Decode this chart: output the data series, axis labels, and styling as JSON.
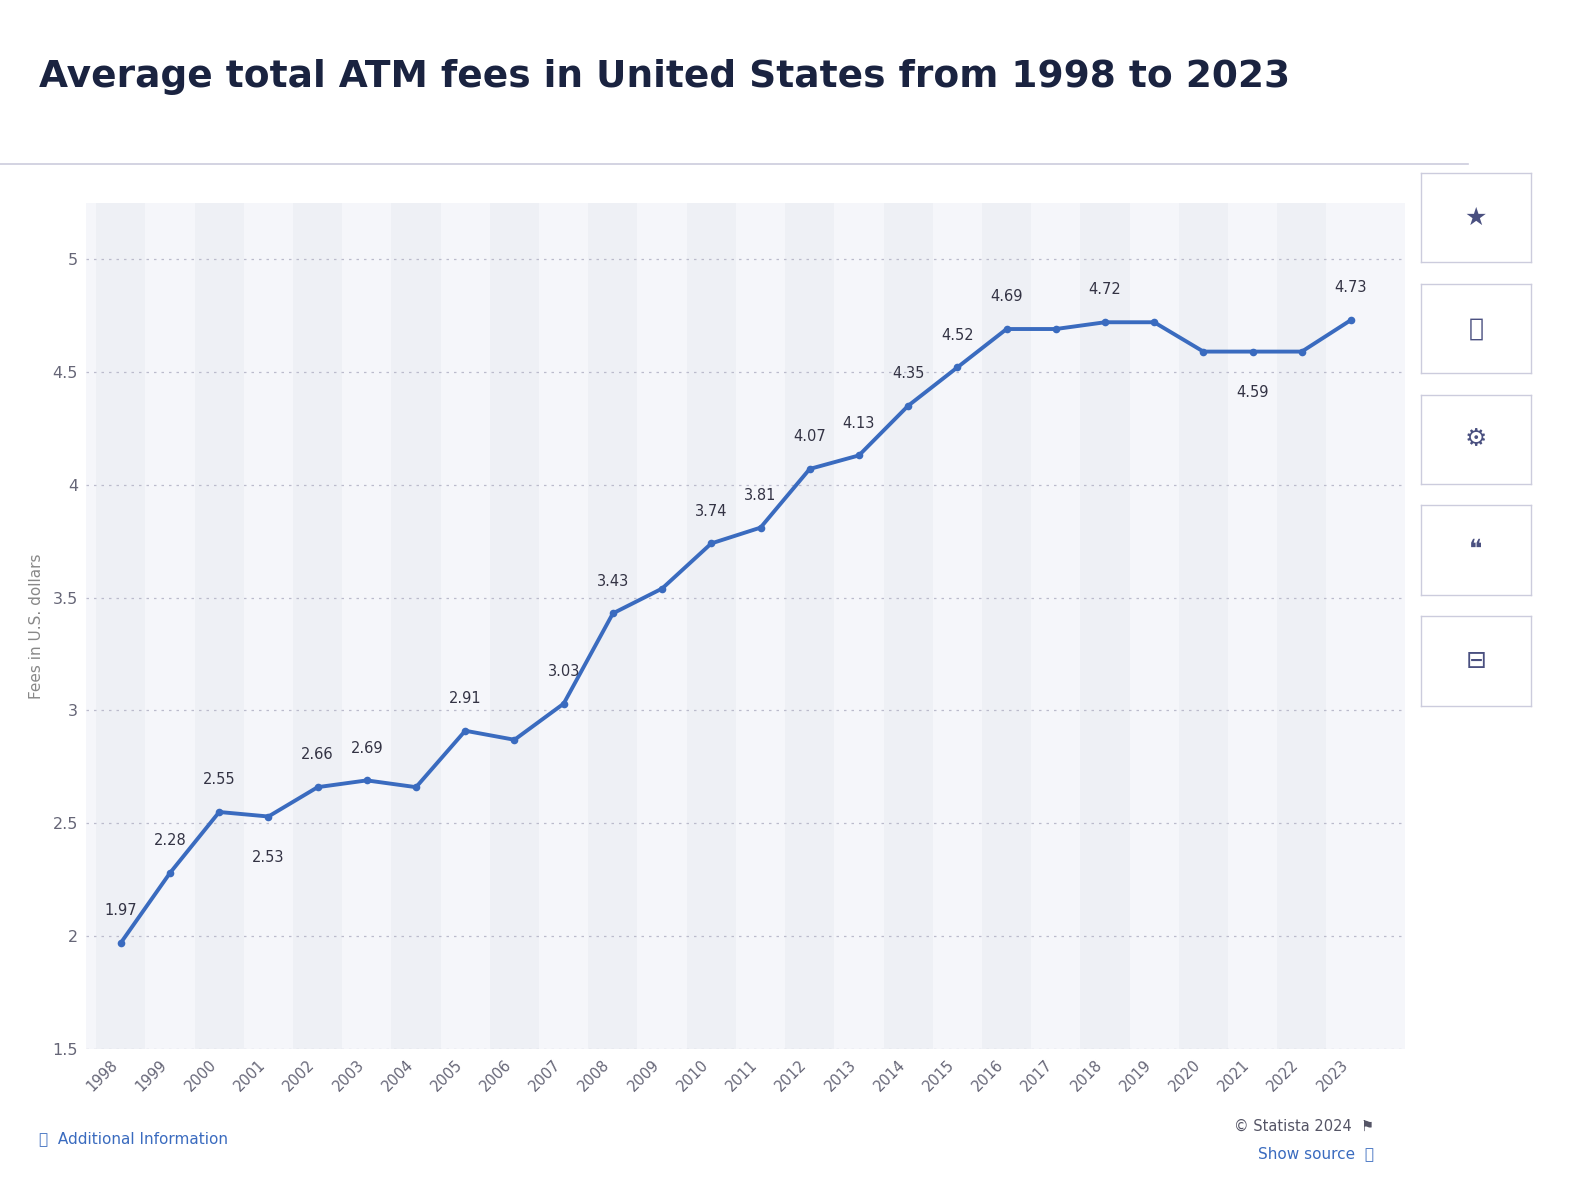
{
  "title": "Average total ATM fees in United States from 1998 to 2023",
  "ylabel": "Fees in U.S. dollars",
  "years": [
    1998,
    1999,
    2000,
    2001,
    2002,
    2003,
    2004,
    2005,
    2006,
    2007,
    2008,
    2009,
    2010,
    2011,
    2012,
    2013,
    2014,
    2015,
    2016,
    2017,
    2018,
    2019,
    2020,
    2021,
    2022,
    2023
  ],
  "values": [
    1.97,
    2.28,
    2.55,
    2.53,
    2.66,
    2.69,
    2.66,
    2.91,
    2.87,
    3.03,
    3.43,
    3.54,
    3.74,
    3.81,
    4.07,
    4.13,
    4.35,
    4.52,
    4.69,
    4.69,
    4.72,
    4.72,
    4.59,
    4.59,
    4.59,
    4.73
  ],
  "show_labels": [
    true,
    true,
    true,
    true,
    true,
    true,
    false,
    true,
    false,
    true,
    true,
    false,
    true,
    true,
    true,
    true,
    true,
    true,
    true,
    false,
    true,
    false,
    false,
    true,
    false,
    true
  ],
  "label_above": [
    true,
    true,
    true,
    false,
    true,
    true,
    false,
    true,
    false,
    true,
    true,
    false,
    true,
    true,
    true,
    true,
    true,
    true,
    true,
    true,
    true,
    true,
    false,
    false,
    false,
    true
  ],
  "line_color": "#3a6bbf",
  "marker_color": "#3a6bbf",
  "bg_color": "#ffffff",
  "plot_bg_even": "#eef0f5",
  "plot_bg_odd": "#f5f6fa",
  "ylim": [
    1.5,
    5.25
  ],
  "yticks": [
    1.5,
    2.0,
    2.5,
    3.0,
    3.5,
    4.0,
    4.5,
    5.0
  ],
  "grid_color": "#bbbbcc",
  "title_color": "#1a2340",
  "axis_label_color": "#888888",
  "annotation_color": "#333344",
  "footer_left": "Additional Information",
  "footer_right_1": "© Statista 2024",
  "footer_right_2": "Show source",
  "statista_color": "#555566",
  "show_source_color": "#3a6bbf",
  "sidebar_bg": "#ffffff",
  "sidebar_border": "#ddddee"
}
